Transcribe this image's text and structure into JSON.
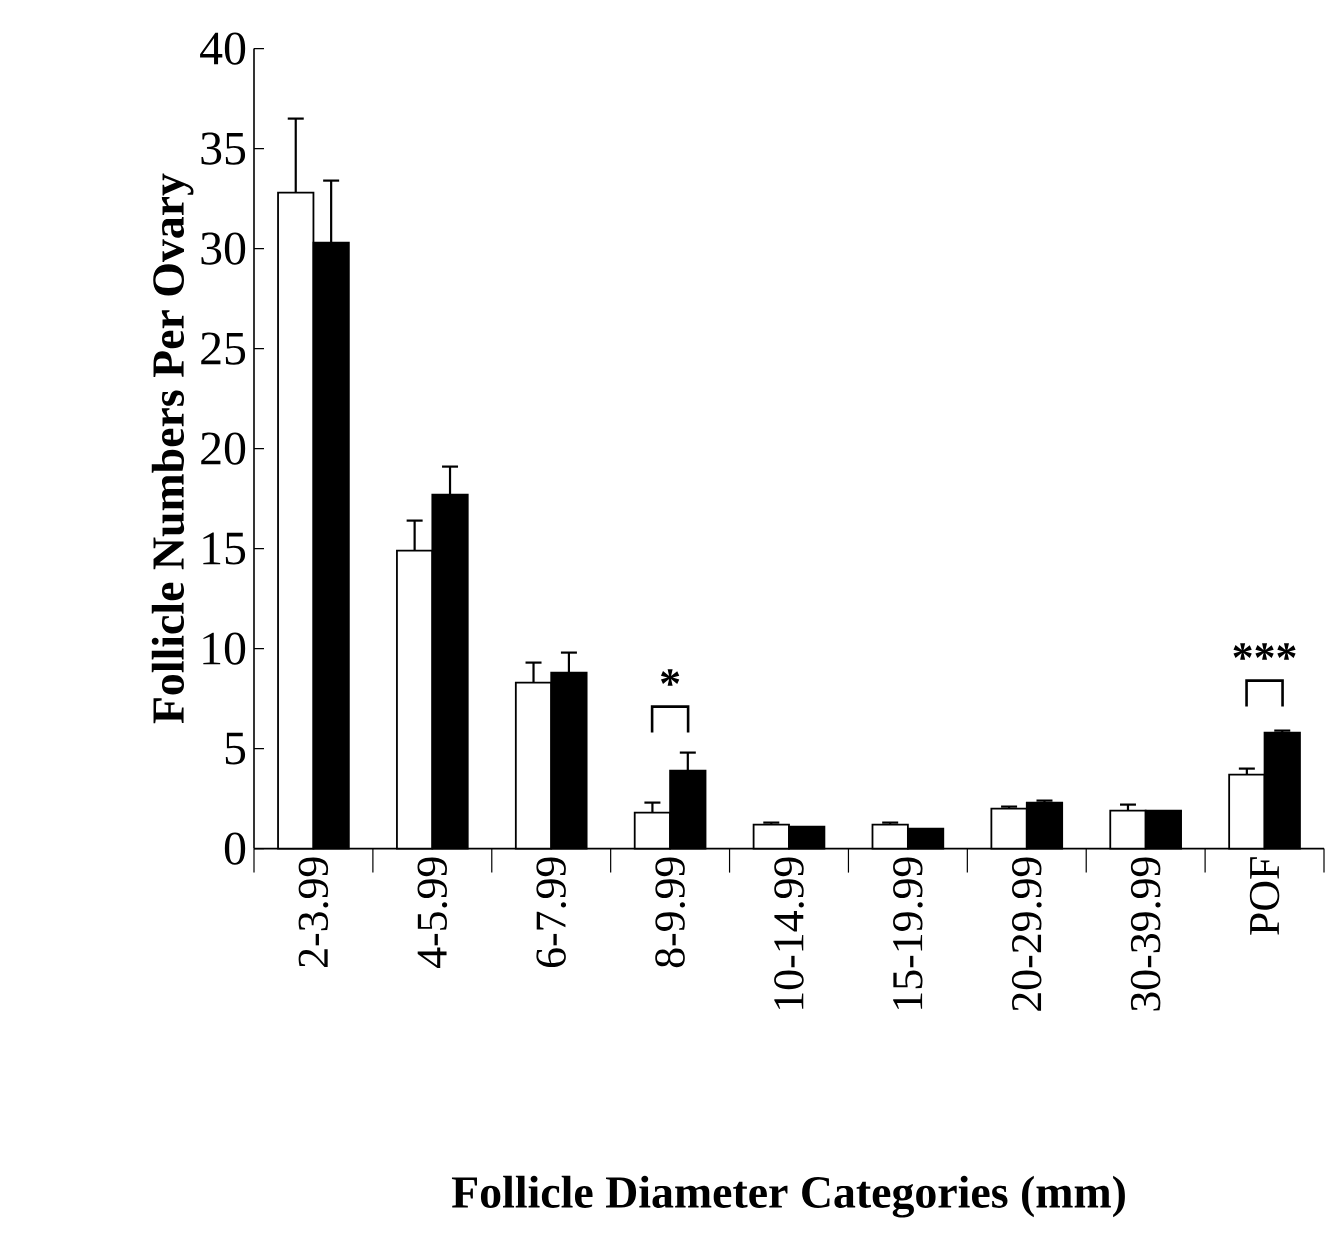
{
  "chart_data": {
    "type": "bar",
    "xlabel": "Follicle Diameter Categories (mm)",
    "ylabel": "Follicle Numbers Per Ovary",
    "categories": [
      "2-3.99",
      "4-5.99",
      "6-7.99",
      "8-9.99",
      "10-14.99",
      "15-19.99",
      "20-29.99",
      "30-39.99",
      "POF"
    ],
    "series": [
      {
        "color": "#ffffff",
        "values": [
          32.8,
          14.9,
          8.3,
          1.8,
          1.2,
          1.2,
          2.0,
          1.9,
          3.7
        ],
        "errors": [
          3.7,
          1.5,
          1.0,
          0.5,
          0.1,
          0.1,
          0.1,
          0.3,
          0.3
        ]
      },
      {
        "color": "#000000",
        "values": [
          30.3,
          17.7,
          8.8,
          3.9,
          1.1,
          1.0,
          2.3,
          1.9,
          5.8
        ],
        "errors": [
          3.1,
          1.4,
          1.0,
          0.9,
          null,
          null,
          0.1,
          null,
          0.1
        ]
      }
    ],
    "ylim": [
      0,
      40
    ],
    "yticks": [
      0,
      5,
      10,
      15,
      20,
      25,
      30,
      35,
      40
    ],
    "grid": false,
    "annotations": [
      {
        "text": "*",
        "x": "8-9.99",
        "y": 3.9
      },
      {
        "text": "***",
        "x": "POF",
        "y": 5.8
      }
    ]
  }
}
